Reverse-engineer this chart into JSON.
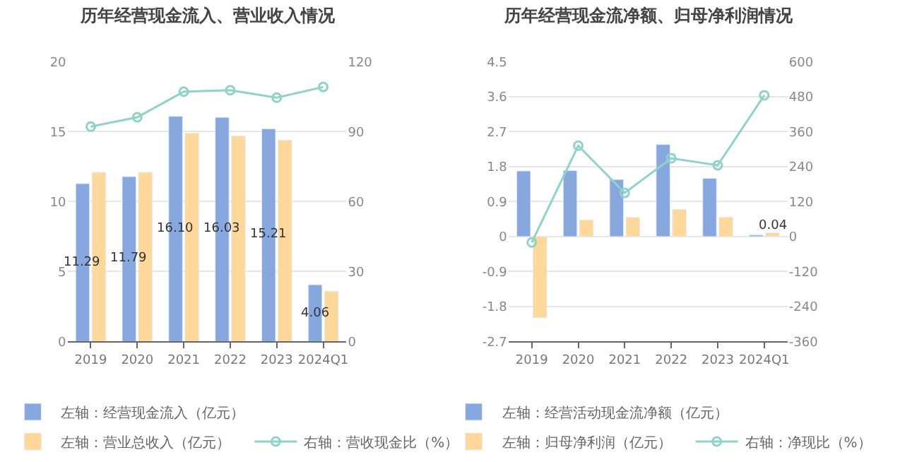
{
  "chart_data": [
    {
      "type": "bar",
      "title": "历年经营现金流入、营业收入情况",
      "categories": [
        "2019",
        "2020",
        "2021",
        "2022",
        "2023",
        "2024Q1"
      ],
      "series": [
        {
          "name": "左轴：经营现金流入（亿元）",
          "color": "#86a8de",
          "values": [
            11.29,
            11.79,
            16.1,
            16.03,
            15.21,
            4.06
          ],
          "value_labels": [
            "11.29",
            "11.79",
            "16.10",
            "16.03",
            "15.21",
            "4.06"
          ]
        },
        {
          "name": "左轴：营业总收入（亿元）",
          "color": "#fdd89a",
          "values": [
            12.1,
            12.1,
            14.9,
            14.7,
            14.4,
            3.6
          ]
        },
        {
          "name": "右轴：营收现金比（%）",
          "type": "line",
          "axis": "y2",
          "color": "#8fd3c8",
          "values": [
            92.2,
            96.2,
            107.2,
            107.8,
            104.6,
            109.2
          ]
        }
      ],
      "ylim": [
        0,
        20
      ],
      "yticks": [
        0,
        5,
        10,
        15,
        20
      ],
      "y2lim": [
        0,
        120
      ],
      "y2ticks": [
        0,
        30,
        60,
        90,
        120
      ],
      "grid": "y",
      "legend": "bottom",
      "marker": "circle",
      "line_style": "solid"
    },
    {
      "type": "bar",
      "title": "历年经营现金流净额、归母净利润情况",
      "categories": [
        "2019",
        "2020",
        "2021",
        "2022",
        "2023",
        "2024Q1"
      ],
      "series": [
        {
          "name": "左轴：经营活动现金流净额（亿元）",
          "color": "#86a8de",
          "values": [
            1.69,
            1.7,
            1.47,
            2.37,
            1.5,
            0.04
          ],
          "value_labels": [
            null,
            null,
            null,
            null,
            null,
            "0.04"
          ]
        },
        {
          "name": "左轴：归母净利润（亿元）",
          "color": "#fdd89a",
          "values": [
            -2.09,
            0.43,
            0.5,
            0.7,
            0.5,
            0.1
          ]
        },
        {
          "name": "右轴：净现比（%）",
          "type": "line",
          "axis": "y2",
          "color": "#8fd3c8",
          "values": [
            -20,
            312,
            150,
            269,
            245,
            485
          ]
        }
      ],
      "ylim": [
        -2.7,
        4.5
      ],
      "yticks": [
        -2.7,
        -1.8,
        -0.9,
        0,
        0.9,
        1.8,
        2.7,
        3.6,
        4.5
      ],
      "y2lim": [
        -360,
        600
      ],
      "y2ticks": [
        -360,
        -240,
        -120,
        0,
        120,
        240,
        360,
        480,
        600
      ],
      "grid": "y",
      "legend": "bottom",
      "marker": "circle",
      "line_style": "solid"
    }
  ]
}
